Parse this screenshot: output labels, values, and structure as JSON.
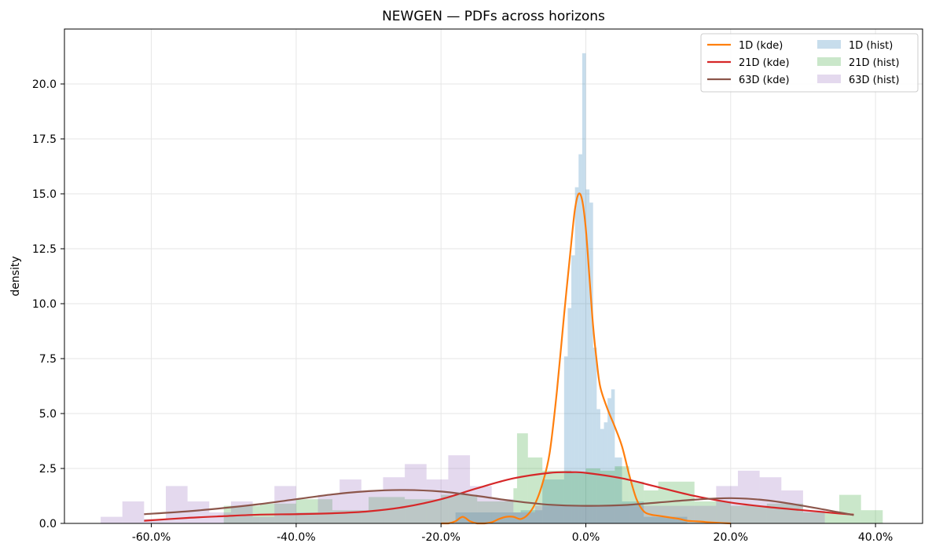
{
  "chart_data": {
    "type": "line",
    "title": "NEWGEN — PDFs across horizons",
    "xlabel": "",
    "ylabel": "density",
    "xlim": [
      -0.72,
      0.465
    ],
    "ylim": [
      0,
      22.5
    ],
    "x_ticks": [
      -0.6,
      -0.4,
      -0.2,
      0.0,
      0.2,
      0.4
    ],
    "x_tick_labels": [
      "-60.0%",
      "-40.0%",
      "-20.0%",
      "0.0%",
      "20.0%",
      "40.0%"
    ],
    "y_ticks": [
      0,
      2.5,
      5.0,
      7.5,
      10.0,
      12.5,
      15.0,
      17.5,
      20.0
    ],
    "y_tick_labels": [
      "0.0",
      "2.5",
      "5.0",
      "7.5",
      "10.0",
      "12.5",
      "15.0",
      "17.5",
      "20.0"
    ],
    "grid": true,
    "legend_position": "top-right",
    "legend_entries": [
      "1D (kde)",
      "21D (kde)",
      "63D (kde)",
      "1D (hist)",
      "21D (hist)",
      "63D (hist)"
    ],
    "kde_series": [
      {
        "name": "1D (kde)",
        "color": "#ff7f0e",
        "x": [
          -0.2,
          -0.19,
          -0.18,
          -0.17,
          -0.16,
          -0.15,
          -0.14,
          -0.13,
          -0.12,
          -0.11,
          -0.1,
          -0.09,
          -0.08,
          -0.07,
          -0.06,
          -0.05,
          -0.04,
          -0.03,
          -0.02,
          -0.015,
          -0.01,
          -0.005,
          0.0,
          0.005,
          0.01,
          0.015,
          0.02,
          0.03,
          0.04,
          0.05,
          0.06,
          0.07,
          0.08,
          0.09,
          0.1,
          0.11,
          0.12,
          0.13,
          0.14,
          0.15,
          0.16,
          0.17,
          0.18,
          0.2
        ],
        "y": [
          0,
          0,
          0.1,
          0.3,
          0.1,
          0,
          0,
          0.05,
          0.2,
          0.3,
          0.3,
          0.2,
          0.4,
          0.9,
          1.8,
          3.2,
          6.0,
          9.5,
          12.8,
          14.3,
          15.0,
          14.7,
          13.4,
          11.2,
          9.0,
          7.4,
          6.2,
          5.2,
          4.4,
          3.5,
          2.2,
          1.1,
          0.55,
          0.4,
          0.35,
          0.3,
          0.25,
          0.2,
          0.12,
          0.1,
          0.08,
          0.05,
          0.03,
          0.0
        ]
      },
      {
        "name": "21D (kde)",
        "color": "#d62728",
        "x": [
          -0.61,
          -0.55,
          -0.5,
          -0.45,
          -0.4,
          -0.35,
          -0.3,
          -0.25,
          -0.2,
          -0.15,
          -0.1,
          -0.05,
          -0.02,
          0.0,
          0.05,
          0.1,
          0.15,
          0.2,
          0.25,
          0.3,
          0.35,
          0.37
        ],
        "y": [
          0.12,
          0.25,
          0.33,
          0.4,
          0.42,
          0.46,
          0.55,
          0.75,
          1.1,
          1.6,
          2.05,
          2.3,
          2.33,
          2.3,
          2.05,
          1.65,
          1.25,
          0.95,
          0.75,
          0.6,
          0.45,
          0.4
        ]
      },
      {
        "name": "63D (kde)",
        "color": "#8c564b",
        "x": [
          -0.61,
          -0.55,
          -0.5,
          -0.45,
          -0.4,
          -0.35,
          -0.3,
          -0.25,
          -0.2,
          -0.15,
          -0.1,
          -0.05,
          0.0,
          0.05,
          0.1,
          0.15,
          0.2,
          0.25,
          0.3,
          0.35,
          0.37
        ],
        "y": [
          0.42,
          0.55,
          0.7,
          0.88,
          1.1,
          1.32,
          1.47,
          1.52,
          1.45,
          1.25,
          1.02,
          0.85,
          0.8,
          0.83,
          0.95,
          1.08,
          1.15,
          1.05,
          0.8,
          0.5,
          0.38
        ]
      }
    ],
    "hist_series": [
      {
        "name": "1D (hist)",
        "color": "#1f77b4",
        "opacity": 0.25,
        "bin_edges": [
          -0.18,
          -0.09,
          -0.06,
          -0.03,
          -0.025,
          -0.02,
          -0.015,
          -0.01,
          -0.005,
          0.0,
          0.005,
          0.01,
          0.015,
          0.02,
          0.025,
          0.03,
          0.035,
          0.04,
          0.05,
          0.08,
          0.14
        ],
        "values": [
          0.5,
          0.6,
          2.0,
          7.6,
          9.8,
          12.2,
          15.3,
          16.8,
          21.4,
          15.2,
          14.6,
          8.0,
          5.2,
          4.3,
          4.6,
          5.7,
          6.1,
          3.0,
          1.0,
          0.3
        ]
      },
      {
        "name": "21D (hist)",
        "color": "#2ca02c",
        "opacity": 0.25,
        "bin_edges": [
          -0.5,
          -0.45,
          -0.4,
          -0.35,
          -0.3,
          -0.25,
          -0.2,
          -0.15,
          -0.1,
          -0.095,
          -0.08,
          -0.06,
          -0.04,
          -0.02,
          0.0,
          0.02,
          0.04,
          0.06,
          0.08,
          0.1,
          0.15,
          0.2,
          0.25,
          0.3,
          0.35,
          0.38,
          0.41
        ],
        "values": [
          0.8,
          0.9,
          1.1,
          0.6,
          1.2,
          1.1,
          1.3,
          1.0,
          1.6,
          4.1,
          3.0,
          2.4,
          2.4,
          2.3,
          2.5,
          2.4,
          2.6,
          1.9,
          1.5,
          1.9,
          1.0,
          0.8,
          0.9,
          0.5,
          1.3,
          0.6
        ]
      },
      {
        "name": "63D (hist)",
        "color": "#9467bd",
        "opacity": 0.25,
        "bin_edges": [
          -0.67,
          -0.64,
          -0.61,
          -0.58,
          -0.55,
          -0.52,
          -0.49,
          -0.46,
          -0.43,
          -0.4,
          -0.37,
          -0.34,
          -0.31,
          -0.28,
          -0.25,
          -0.22,
          -0.19,
          -0.16,
          -0.13,
          -0.1,
          -0.07,
          0.18,
          0.21,
          0.24,
          0.27,
          0.3,
          0.33
        ],
        "values": [
          0.3,
          1.0,
          0.2,
          1.7,
          1.0,
          0.5,
          1.0,
          0.3,
          1.7,
          0.5,
          1.3,
          2.0,
          1.5,
          2.1,
          2.7,
          2.0,
          3.1,
          1.7,
          1.1,
          0.5,
          0.8,
          1.7,
          2.4,
          2.1,
          1.5,
          0.6
        ]
      }
    ]
  }
}
